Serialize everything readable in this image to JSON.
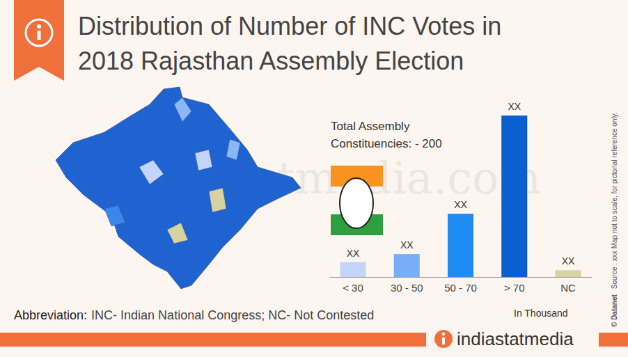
{
  "chart_data": {
    "type": "bar",
    "title": "Distribution of Number of INC Votes in 2018 Rajasthan Assembly Election",
    "categories": [
      "< 30",
      "30 - 50",
      "50 - 70",
      "> 70",
      "NC"
    ],
    "values": [
      11,
      17,
      47,
      120,
      5
    ],
    "value_labels": [
      "XX",
      "XX",
      "XX",
      "XX",
      "XX"
    ],
    "colors": [
      "#c3d5fb",
      "#78aef6",
      "#1e8cf0",
      "#0b5fcf",
      "#d6d2a2"
    ],
    "ylim": [
      0,
      120
    ],
    "data_labels": true,
    "tick_labels": "x",
    "xlabel": "In Thousand",
    "annotations": [
      "Total Assembly Constituencies: - 200",
      "Abbreviation:",
      "INC- Indian National Congress; NC- Not Contested",
      "Source : xxx  Map not to scale, for pictorial reference only.",
      "© Datanet",
      "indiastatmedia",
      "indiastatmedia.com"
    ]
  }
}
